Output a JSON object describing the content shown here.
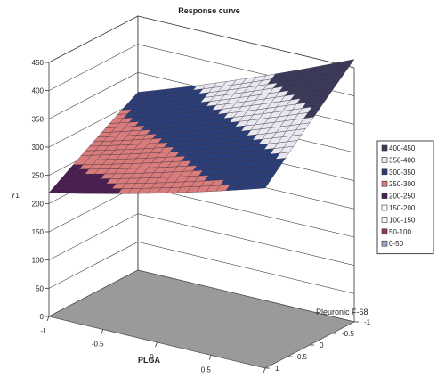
{
  "chart_data": {
    "type": "surface",
    "title": "Response curve",
    "xlabel": "PLGA",
    "ylabel": "Pleuronic F-68",
    "zlabel": "Y1",
    "x_ticks": [
      "-1",
      "-0.5",
      "0",
      "0.5",
      "1"
    ],
    "y_ticks": [
      "-1",
      "-0.5",
      "0",
      "0.5",
      "1"
    ],
    "z_ticks": [
      "0",
      "50",
      "100",
      "150",
      "200",
      "250",
      "300",
      "350",
      "400",
      "450"
    ],
    "xlim": [
      -1,
      1
    ],
    "ylim": [
      -1,
      1
    ],
    "zlim": [
      0,
      450
    ],
    "surface_z_corners": {
      "x-1_y-1": 315,
      "x-1_y1": 225,
      "x1_y-1": 445,
      "x1_y1": 305
    },
    "legend": [
      {
        "label": "400-450",
        "color": "#3a3a5a"
      },
      {
        "label": "350-400",
        "color": "#e8e8f0"
      },
      {
        "label": "300-350",
        "color": "#2a3f7a"
      },
      {
        "label": "250-300",
        "color": "#d97c7c"
      },
      {
        "label": "200-250",
        "color": "#4a1e52"
      },
      {
        "label": "150-200",
        "color": "#fdfdf0"
      },
      {
        "label": "100-150",
        "color": "#f6f6f6"
      },
      {
        "label": "50-100",
        "color": "#8a3d55"
      },
      {
        "label": "0-50",
        "color": "#9aa6c4"
      }
    ],
    "floor_color": "#9a9a9a",
    "grid": true,
    "legend_position": "right"
  }
}
